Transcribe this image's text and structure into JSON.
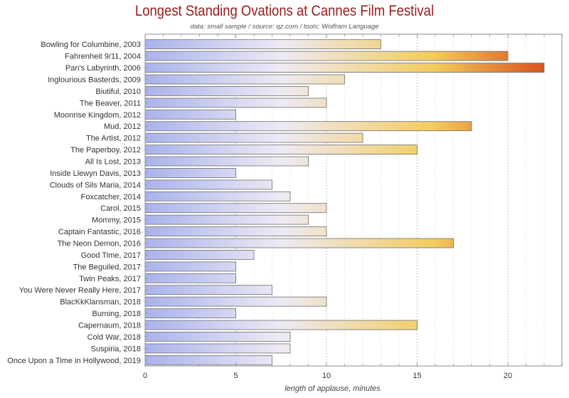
{
  "chart_data": {
    "type": "bar",
    "orientation": "horizontal",
    "title": "Longest Standing Ovations at Cannes Film Festival",
    "subtitle": "data: small sample / source: qz.com / tools: Wolfram Language",
    "xlabel": "length of applause, minutes",
    "ylabel": "",
    "xlim": [
      0,
      23
    ],
    "x_ticks": [
      0,
      5,
      10,
      15,
      20
    ],
    "grid": "vertical dotted",
    "categories": [
      "Bowling for Columbine, 2003",
      "Fahrenheit 9/11, 2004",
      "Pan's Labyrinth, 2006",
      "Inglourious Basterds, 2009",
      "Biutiful, 2010",
      "The Beaver, 2011",
      "Moonrise Kingdom, 2012",
      "Mud, 2012",
      "The Artist, 2012",
      "The Paperboy, 2012",
      "All Is Lost, 2013",
      "Inside Llewyn Davis, 2013",
      "Clouds of Sils Maria, 2014",
      "Foxcatcher, 2014",
      "Carol, 2015",
      "Mommy, 2015",
      "Captain Fantastic, 2016",
      "The Neon Demon, 2016",
      "Good Time, 2017",
      "The Beguiled, 2017",
      "Twin Peaks, 2017",
      "You Were Never Really Here, 2017",
      "BlacKkKlansman, 2018",
      "Burning, 2018",
      "Capernaum, 2018",
      "Cold War, 2018",
      "Suspiria, 2018",
      "Once Upon a Time in Hollywood, 2019"
    ],
    "values": [
      13,
      20,
      22,
      11,
      9,
      10,
      5,
      18,
      12,
      15,
      9,
      5,
      7,
      8,
      10,
      9,
      10,
      17,
      6,
      5,
      5,
      7,
      10,
      5,
      15,
      8,
      8,
      7
    ],
    "colors": {
      "gradient_start": "#a9b3ec",
      "gradient_mid": "#eeeaf4",
      "gradient_warm": "#f3cc5e",
      "gradient_end": "#d9531d",
      "bar_border": "#6e6e6e",
      "title": "#9b1b1b"
    }
  }
}
